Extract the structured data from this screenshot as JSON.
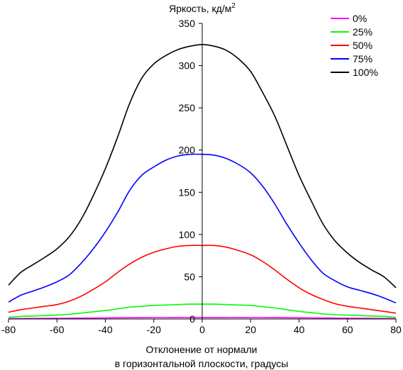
{
  "chart_data": {
    "type": "line",
    "ylabel": "Яркость, кд/м",
    "ylabel_sup": "2",
    "xlabel_line1": "Отклонение от нормали",
    "xlabel_line2": "в горизонтальной плоскости, градусы",
    "xlim": [
      -80,
      80
    ],
    "ylim": [
      0,
      350
    ],
    "x_ticks": [
      -80,
      -60,
      -40,
      -20,
      0,
      20,
      40,
      60,
      80
    ],
    "y_ticks": [
      0,
      50,
      100,
      150,
      200,
      250,
      300,
      350
    ],
    "grid": false,
    "legend_position": "top-right",
    "x": [
      -80,
      -75,
      -70,
      -65,
      -60,
      -55,
      -50,
      -45,
      -40,
      -35,
      -30,
      -25,
      -20,
      -15,
      -10,
      -5,
      0,
      5,
      10,
      15,
      20,
      25,
      30,
      35,
      40,
      45,
      50,
      55,
      60,
      65,
      70,
      75,
      80
    ],
    "series": [
      {
        "name": "0%",
        "color": "#ff00ff",
        "values": [
          0.5,
          0.5,
          0.6,
          0.7,
          0.8,
          0.9,
          1.0,
          1.1,
          1.3,
          1.4,
          1.5,
          1.6,
          1.7,
          1.7,
          1.8,
          1.8,
          1.8,
          1.8,
          1.8,
          1.8,
          1.7,
          1.7,
          1.6,
          1.5,
          1.4,
          1.3,
          1.2,
          1.0,
          0.9,
          0.8,
          0.7,
          0.6,
          0.5
        ]
      },
      {
        "name": "25%",
        "color": "#00ff00",
        "values": [
          2,
          3,
          3.5,
          4,
          4.5,
          5.5,
          7,
          8.5,
          10,
          12,
          14,
          15,
          16,
          16.5,
          17,
          17.5,
          17.5,
          17.5,
          17,
          16.5,
          16,
          14.5,
          13,
          11,
          9,
          7.5,
          6,
          5,
          4.5,
          4,
          3.5,
          3,
          2
        ]
      },
      {
        "name": "50%",
        "color": "#ff0000",
        "values": [
          8,
          11,
          13,
          15,
          17,
          21,
          27,
          35,
          44,
          55,
          65,
          73,
          79,
          83,
          86,
          87,
          87,
          87,
          85,
          81,
          76,
          68,
          58,
          47,
          37,
          29,
          23,
          18,
          15,
          13,
          11,
          9,
          7
        ]
      },
      {
        "name": "75%",
        "color": "#0000ff",
        "values": [
          20,
          28,
          33,
          38,
          44,
          52,
          66,
          83,
          103,
          126,
          152,
          170,
          180,
          188,
          193,
          195,
          195,
          194,
          190,
          183,
          173,
          157,
          136,
          112,
          90,
          70,
          54,
          45,
          38,
          34,
          30,
          25,
          19
        ]
      },
      {
        "name": "100%",
        "color": "#000000",
        "values": [
          40,
          55,
          64,
          73,
          83,
          97,
          118,
          146,
          178,
          215,
          255,
          285,
          302,
          312,
          319,
          323,
          325,
          323,
          318,
          308,
          293,
          268,
          240,
          205,
          170,
          140,
          112,
          92,
          78,
          67,
          58,
          50,
          37
        ]
      }
    ]
  }
}
